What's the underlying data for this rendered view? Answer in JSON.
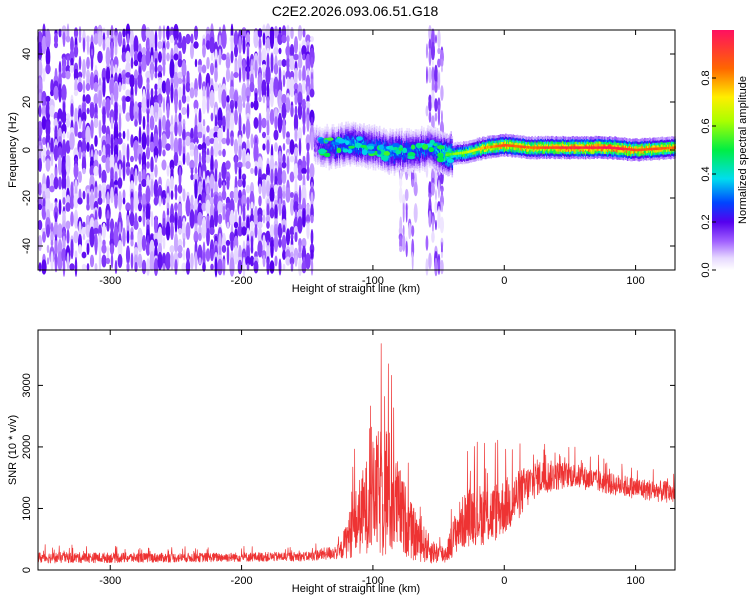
{
  "title": "C2E2.2026.093.06.51.G18",
  "colors": {
    "snr_line": "#ee3333",
    "frame": "#000000"
  },
  "chart_data": [
    {
      "type": "heatmap",
      "xlabel": "Height of straight line (km)",
      "ylabel": "Frequency (Hz)",
      "xlim": [
        -355,
        130
      ],
      "ylim": [
        -50,
        50
      ],
      "xticks": [
        -300,
        -200,
        -100,
        0,
        100
      ],
      "yticks": [
        -40,
        -20,
        0,
        20,
        40
      ],
      "colorbar": {
        "label": "Normalized spectral amplitude",
        "range": [
          0,
          1
        ],
        "ticks": [
          0.0,
          0.2,
          0.4,
          0.6,
          0.8
        ],
        "tick_labels": [
          "0.0",
          "0.2",
          "0.4",
          "0.6",
          "0.8"
        ]
      },
      "noise_region": {
        "x": [
          -355,
          -145
        ],
        "y": [
          -50,
          50
        ],
        "amplitude": 0.12
      },
      "noise_band": {
        "x": [
          -60,
          -48
        ],
        "y": [
          -50,
          50
        ],
        "amplitude": 0.1
      },
      "noise_band2": {
        "x": [
          -80,
          -68
        ],
        "y": [
          -50,
          -5
        ],
        "amplitude": 0.08
      },
      "signal_track": [
        {
          "x": -145,
          "y": 2,
          "amp": 0.15
        },
        {
          "x": -130,
          "y": 1,
          "amp": 0.3
        },
        {
          "x": -115,
          "y": 3,
          "amp": 0.35
        },
        {
          "x": -100,
          "y": 1,
          "amp": 0.3
        },
        {
          "x": -85,
          "y": -1,
          "amp": 0.35
        },
        {
          "x": -70,
          "y": 0,
          "amp": 0.3
        },
        {
          "x": -55,
          "y": 1,
          "amp": 0.3
        },
        {
          "x": -45,
          "y": -2,
          "amp": 0.45
        },
        {
          "x": -30,
          "y": -1,
          "amp": 0.55
        },
        {
          "x": -15,
          "y": 1,
          "amp": 0.7
        },
        {
          "x": 0,
          "y": 2,
          "amp": 0.8
        },
        {
          "x": 20,
          "y": 1,
          "amp": 0.75
        },
        {
          "x": 50,
          "y": 1,
          "amp": 0.85
        },
        {
          "x": 80,
          "y": 1,
          "amp": 0.9
        },
        {
          "x": 100,
          "y": 0,
          "amp": 0.8
        },
        {
          "x": 130,
          "y": 1,
          "amp": 0.75
        }
      ]
    },
    {
      "type": "line",
      "xlabel": "Height of straight line (km)",
      "ylabel": "SNR (10 * v/v)",
      "xlim": [
        -355,
        130
      ],
      "ylim": [
        0,
        3900
      ],
      "xticks": [
        -300,
        -200,
        -100,
        0,
        100
      ],
      "yticks": [
        0,
        1000,
        2000,
        3000
      ],
      "envelope": [
        {
          "x": -355,
          "base": 200,
          "spread": 180
        },
        {
          "x": -250,
          "base": 200,
          "spread": 150
        },
        {
          "x": -150,
          "base": 220,
          "spread": 150
        },
        {
          "x": -125,
          "base": 300,
          "spread": 250
        },
        {
          "x": -115,
          "base": 700,
          "spread": 1000
        },
        {
          "x": -100,
          "base": 1200,
          "spread": 1800
        },
        {
          "x": -90,
          "base": 1300,
          "spread": 2400
        },
        {
          "x": -80,
          "base": 1000,
          "spread": 1400
        },
        {
          "x": -70,
          "base": 600,
          "spread": 900
        },
        {
          "x": -55,
          "base": 300,
          "spread": 400
        },
        {
          "x": -45,
          "base": 250,
          "spread": 300
        },
        {
          "x": -35,
          "base": 700,
          "spread": 800
        },
        {
          "x": -25,
          "base": 900,
          "spread": 1000
        },
        {
          "x": -10,
          "base": 900,
          "spread": 1000
        },
        {
          "x": 5,
          "base": 1100,
          "spread": 900
        },
        {
          "x": 25,
          "base": 1500,
          "spread": 600
        },
        {
          "x": 50,
          "base": 1550,
          "spread": 400
        },
        {
          "x": 80,
          "base": 1400,
          "spread": 350
        },
        {
          "x": 110,
          "base": 1300,
          "spread": 350
        },
        {
          "x": 130,
          "base": 1250,
          "spread": 350
        }
      ]
    }
  ]
}
